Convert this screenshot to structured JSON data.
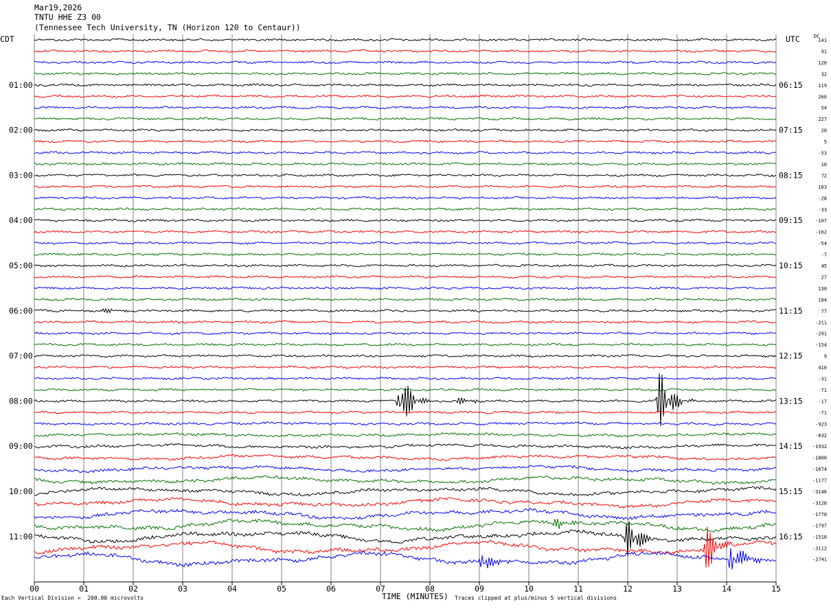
{
  "header": {
    "line1": "Mar19,2026",
    "line2": "TNTU HHE Z3 00",
    "line3": "(Tennessee Tech University, TN (Horizon 120 to Centaur))"
  },
  "labels": {
    "left_zone": "CDT",
    "right_zone": "UTC",
    "dc": "DC"
  },
  "footer": {
    "scale": "Each Vertical Division =  200.00 microvolts",
    "clip": "Traces clipped at plus/minus 5 vertical divisions"
  },
  "colors": {
    "trace_cycle": [
      "#000000",
      "#ff0000",
      "#0000ff",
      "#007000"
    ],
    "grid": "#808080"
  },
  "chart_data": {
    "type": "line",
    "title": "TNTU HHE Z3 00",
    "xlabel": "TIME (MINUTES)",
    "x_ticks": [
      "00",
      "01",
      "02",
      "03",
      "04",
      "05",
      "06",
      "07",
      "08",
      "09",
      "10",
      "11",
      "12",
      "13",
      "14",
      "15"
    ],
    "x_range": [
      0,
      15
    ],
    "rows_per_hour": 4,
    "left_hour_labels": [
      "01:00",
      "02:00",
      "03:00",
      "04:00",
      "05:00",
      "06:00",
      "07:00",
      "08:00",
      "09:00",
      "10:00",
      "11:00"
    ],
    "right_hour_labels": [
      "06:15",
      "07:15",
      "08:15",
      "09:15",
      "10:15",
      "11:15",
      "12:15",
      "13:15",
      "14:15",
      "15:15",
      "16:15"
    ],
    "dc_offsets": [
      141,
      91,
      126,
      32,
      119,
      260,
      54,
      227,
      20,
      5,
      -53,
      10,
      72,
      103,
      -28,
      -33,
      -107,
      -162,
      -54,
      -7,
      45,
      27,
      130,
      184,
      77,
      -211,
      -291,
      -154,
      9,
      410,
      -31,
      -71,
      -17,
      -71,
      -923,
      -832,
      -1932,
      -1800,
      -1674,
      -1177,
      -3146,
      -3128,
      -1770,
      -1797,
      -1518,
      -3112,
      -2741
    ],
    "events": [
      {
        "row": 24,
        "minute": 1.35,
        "amplitude": 0.35
      },
      {
        "row": 32,
        "minute": 7.4,
        "amplitude": 3.2
      },
      {
        "row": 32,
        "minute": 12.65,
        "amplitude": 3.4
      },
      {
        "row": 32,
        "minute": 8.6,
        "amplitude": 0.5
      },
      {
        "row": 46,
        "minute": 9.05,
        "amplitude": 1.6
      },
      {
        "row": 44,
        "minute": 12.0,
        "amplitude": 2.4
      },
      {
        "row": 45,
        "minute": 13.6,
        "amplitude": 2.6
      },
      {
        "row": 46,
        "minute": 14.1,
        "amplitude": 2.2
      },
      {
        "row": 43,
        "minute": 10.5,
        "amplitude": 0.6
      }
    ]
  }
}
